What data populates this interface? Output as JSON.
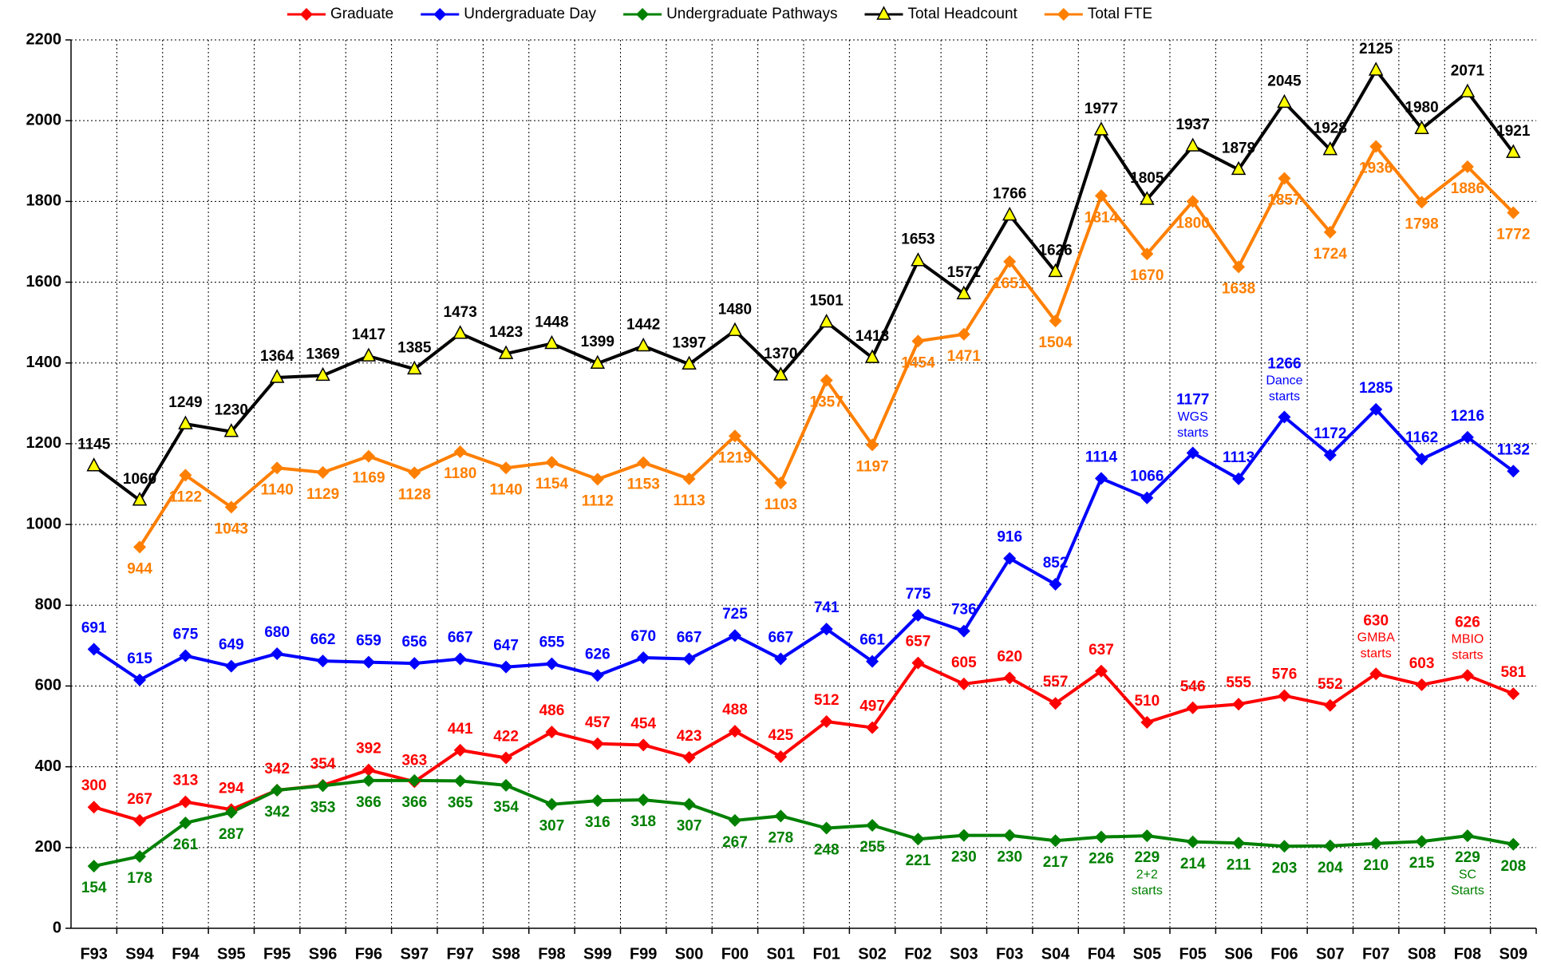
{
  "chart_data": {
    "type": "line",
    "categories": [
      "F93",
      "S94",
      "F94",
      "S95",
      "F95",
      "S96",
      "F96",
      "S97",
      "F97",
      "S98",
      "F98",
      "S99",
      "F99",
      "S00",
      "F00",
      "S01",
      "F01",
      "S02",
      "F02",
      "S03",
      "F03",
      "S04",
      "F04",
      "S05",
      "F05",
      "S06",
      "F06",
      "S07",
      "F07",
      "S08",
      "F08",
      "S09"
    ],
    "series": [
      {
        "name": "Graduate",
        "color": "#ff0000",
        "marker": "diamond",
        "label_position": "above",
        "values": [
          300,
          267,
          313,
          294,
          342,
          354,
          392,
          363,
          441,
          422,
          486,
          457,
          454,
          423,
          488,
          425,
          512,
          497,
          657,
          605,
          620,
          557,
          637,
          510,
          546,
          555,
          576,
          552,
          630,
          603,
          626,
          581
        ]
      },
      {
        "name": "Undergraduate Day",
        "color": "#0000ff",
        "marker": "diamond",
        "label_position": "above",
        "values": [
          691,
          615,
          675,
          649,
          680,
          662,
          659,
          656,
          667,
          647,
          655,
          626,
          670,
          667,
          725,
          667,
          741,
          661,
          775,
          736,
          916,
          852,
          1114,
          1066,
          1177,
          1113,
          1266,
          1172,
          1285,
          1162,
          1216,
          1132
        ]
      },
      {
        "name": "Undergraduate Pathways",
        "color": "#008000",
        "marker": "diamond",
        "label_position": "below",
        "values": [
          154,
          178,
          261,
          287,
          342,
          353,
          366,
          366,
          365,
          354,
          307,
          316,
          318,
          307,
          267,
          278,
          248,
          255,
          221,
          230,
          230,
          217,
          226,
          229,
          214,
          211,
          203,
          204,
          210,
          215,
          229,
          208
        ]
      },
      {
        "name": "Total Headcount",
        "color": "#000000",
        "marker": "triangle",
        "marker_fill": "#ffff00",
        "label_position": "above",
        "values": [
          1145,
          1060,
          1249,
          1230,
          1364,
          1369,
          1417,
          1385,
          1473,
          1423,
          1448,
          1399,
          1442,
          1397,
          1480,
          1370,
          1501,
          1413,
          1653,
          1571,
          1766,
          1626,
          1977,
          1805,
          1937,
          1879,
          2045,
          1928,
          2125,
          1980,
          2071,
          1921
        ]
      },
      {
        "name": "Total FTE",
        "color": "#ff7f00",
        "marker": "diamond",
        "label_position": "below",
        "values": [
          null,
          944,
          1122,
          1043,
          1140,
          1129,
          1169,
          1128,
          1180,
          1140,
          1154,
          1112,
          1153,
          1113,
          1219,
          1103,
          1357,
          1197,
          1454,
          1471,
          1651,
          1504,
          1814,
          1670,
          1800,
          1638,
          1857,
          1724,
          1936,
          1798,
          1886,
          1772
        ]
      }
    ],
    "annotations": [
      {
        "series": "Undergraduate Day",
        "category": "F05",
        "lines": [
          "WGS",
          "starts"
        ]
      },
      {
        "series": "Undergraduate Day",
        "category": "F06",
        "lines": [
          "Dance",
          "starts"
        ]
      },
      {
        "series": "Graduate",
        "category": "F07",
        "lines": [
          "GMBA",
          "starts"
        ]
      },
      {
        "series": "Graduate",
        "category": "F08",
        "lines": [
          "MBIO",
          "starts"
        ]
      },
      {
        "series": "Undergraduate Pathways",
        "category": "S05",
        "lines": [
          "2+2",
          "starts"
        ]
      },
      {
        "series": "Undergraduate Pathways",
        "category": "F08",
        "lines": [
          "SC",
          "Starts"
        ]
      }
    ],
    "ylim": [
      0,
      2200
    ],
    "yticks": [
      0,
      200,
      400,
      600,
      800,
      1000,
      1200,
      1400,
      1600,
      1800,
      2000,
      2200
    ],
    "grid": true,
    "legend": "top"
  }
}
